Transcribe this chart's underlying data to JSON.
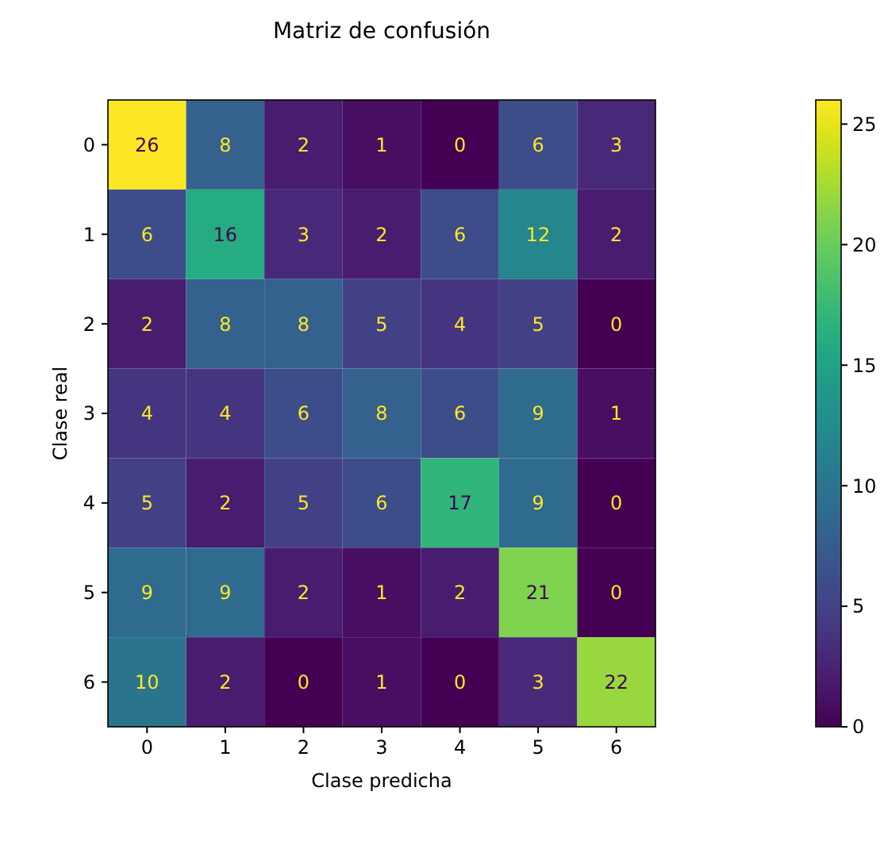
{
  "chart_data": {
    "type": "heatmap",
    "title": "Matriz de confusión",
    "xlabel": "Clase predicha",
    "ylabel": "Clase real",
    "categories": [
      "0",
      "1",
      "2",
      "3",
      "4",
      "5",
      "6"
    ],
    "y_categories": [
      "0",
      "1",
      "2",
      "3",
      "4",
      "5",
      "6"
    ],
    "cells": [
      [
        26,
        8,
        2,
        1,
        0,
        6,
        3
      ],
      [
        6,
        16,
        3,
        2,
        6,
        12,
        2
      ],
      [
        2,
        8,
        8,
        5,
        4,
        5,
        0
      ],
      [
        4,
        4,
        6,
        8,
        6,
        9,
        1
      ],
      [
        5,
        2,
        5,
        6,
        17,
        9,
        0
      ],
      [
        9,
        9,
        2,
        1,
        2,
        21,
        0
      ],
      [
        10,
        2,
        0,
        1,
        0,
        3,
        22
      ]
    ],
    "clim": [
      0,
      26
    ],
    "cticks": [
      0,
      5,
      10,
      15,
      20,
      25
    ],
    "data_labels": true
  }
}
